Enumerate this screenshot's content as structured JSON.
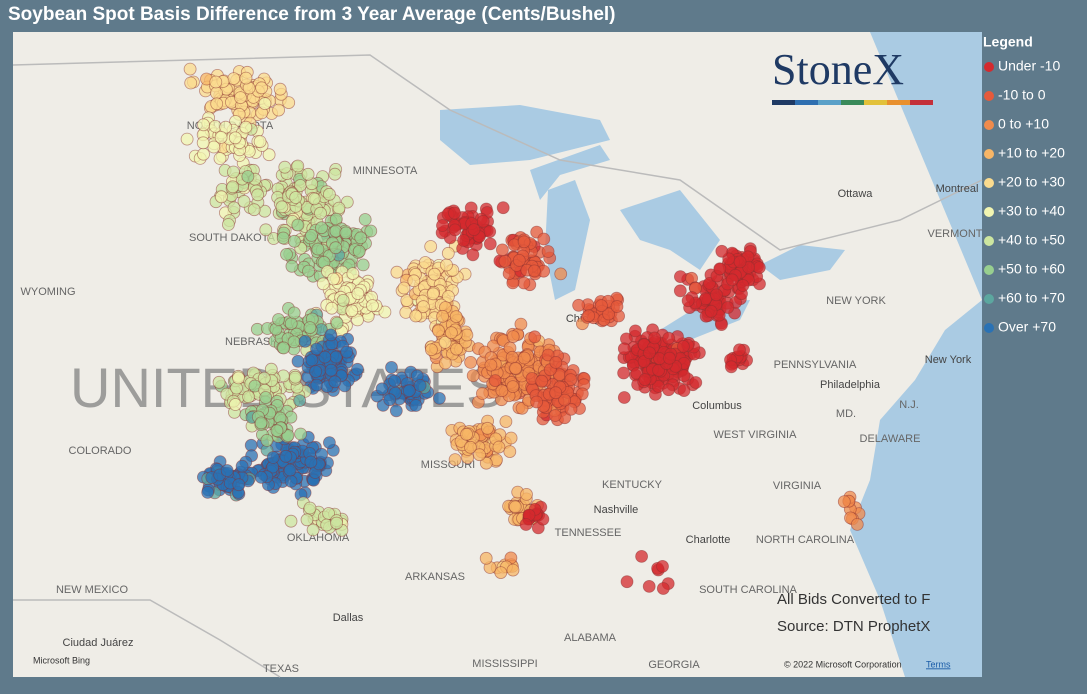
{
  "header": {
    "title": "Soybean Spot Basis Difference from 3 Year Average (Cents/Bushel)"
  },
  "legend": {
    "title": "Legend",
    "items": [
      {
        "label": "Under -10",
        "color": "#d42a2e"
      },
      {
        "label": "-10 to 0",
        "color": "#e65a3b"
      },
      {
        "label": "0 to +10",
        "color": "#f08b4c"
      },
      {
        "label": "+10 to +20",
        "color": "#f7b566"
      },
      {
        "label": "+20 to +30",
        "color": "#fbdb8e"
      },
      {
        "label": "+30 to +40",
        "color": "#f2f5b1"
      },
      {
        "label": "+40 to +50",
        "color": "#cde6a0"
      },
      {
        "label": "+50 to +60",
        "color": "#98cf8f"
      },
      {
        "label": "+60 to +70",
        "color": "#5ca79f"
      },
      {
        "label": "Over +70",
        "color": "#2a72b4"
      }
    ]
  },
  "map": {
    "places": [
      "NORTH DAKOTA",
      "MINNESOTA",
      "SOUTH DAKOTA",
      "WYOMING",
      "NEBRASKA",
      "COLORADO",
      "MISSOURI",
      "KENTUCKY",
      "TENNESSEE",
      "ARKANSAS",
      "OKLAHOMA",
      "NEW MEXICO",
      "TEXAS",
      "MISSISSIPPI",
      "ALABAMA",
      "GEORGIA",
      "SOUTH CAROLINA",
      "NORTH CAROLINA",
      "VIRGINIA",
      "WEST VIRGINIA",
      "PENNSYLVANIA",
      "NEW YORK",
      "DELAWARE",
      "MD.",
      "N.J.",
      "VERMONT",
      "Ottawa",
      "Montreal",
      "Chicago",
      "Columbus",
      "Philadelphia",
      "New York",
      "Nashville",
      "Charlotte",
      "Dallas",
      "Ciudad Juárez"
    ],
    "country": "UNITED STATES",
    "logo": "StoneX",
    "notes": [
      "All Bids Converted to F",
      "Source: DTN ProphetX"
    ],
    "attribution": {
      "bing": "Microsoft Bing",
      "copyright": "© 2022 Microsoft Corporation",
      "terms": "Terms"
    }
  }
}
